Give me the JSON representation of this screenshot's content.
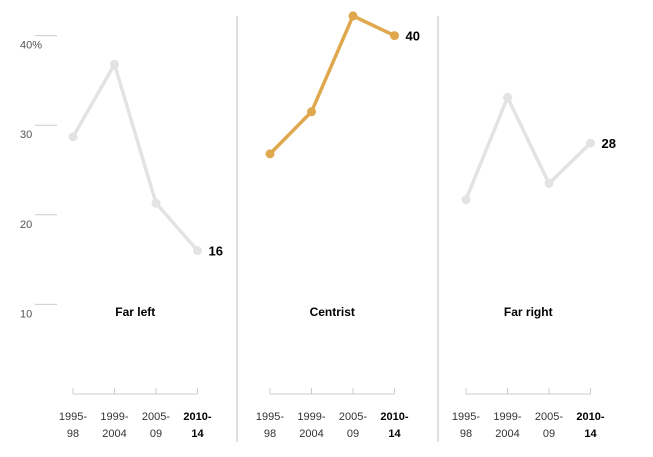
{
  "colors": {
    "muted": "#e3e3e3",
    "highlight": "#e0a84e",
    "grid": "#cccccc",
    "divider": "#d5d5d5",
    "axis": "#cccccc"
  },
  "chart_data": {
    "type": "line",
    "ylim": [
      0,
      45
    ],
    "yticks": [
      {
        "value": 40,
        "label": "40%"
      },
      {
        "value": 30,
        "label": "30"
      },
      {
        "value": 20,
        "label": "20"
      },
      {
        "value": 10,
        "label": "10"
      }
    ],
    "x": [
      {
        "top": "1995-",
        "bottom": "98",
        "bold": false
      },
      {
        "top": "1999-",
        "bottom": "2004",
        "bold": false
      },
      {
        "top": "2005-",
        "bottom": "09",
        "bold": false
      },
      {
        "top": "2010-",
        "bottom": "14",
        "bold": true
      }
    ],
    "panels": [
      {
        "title": "Far left",
        "highlight": false,
        "values": [
          28.7,
          36.8,
          21.3,
          16
        ],
        "end_label": "16"
      },
      {
        "title": "Centrist",
        "highlight": true,
        "values": [
          26.8,
          31.5,
          42.2,
          40
        ],
        "end_label": "40"
      },
      {
        "title": "Far right",
        "highlight": false,
        "values": [
          21.7,
          33.1,
          23.5,
          28
        ],
        "end_label": "28"
      }
    ],
    "grid": true
  }
}
